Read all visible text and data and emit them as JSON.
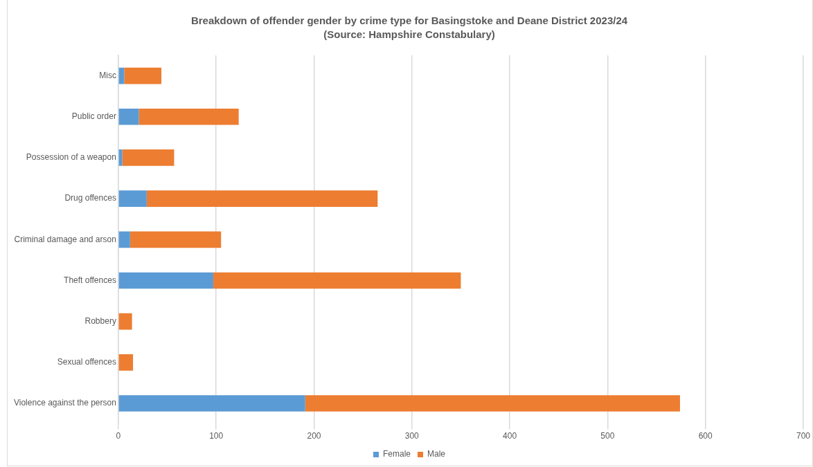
{
  "chart_data": {
    "type": "bar",
    "orientation": "horizontal",
    "stacked": true,
    "title": "Breakdown of offender gender by crime type for Basingstoke and Deane District 2023/24",
    "subtitle": "(Source: Hampshire Constabulary)",
    "categories": [
      "Misc",
      "Public order",
      "Possession of a weapon",
      "Drug offences",
      "Criminal damage and arson",
      "Theft offences",
      "Robbery",
      "Sexual offences",
      "Violence against the person"
    ],
    "series": [
      {
        "name": "Female",
        "color": "#5b9bd5",
        "values": [
          6,
          21,
          4,
          29,
          12,
          97,
          0,
          0,
          191
        ]
      },
      {
        "name": "Male",
        "color": "#ed7d31",
        "values": [
          38,
          102,
          53,
          236,
          93,
          253,
          14,
          15,
          383
        ]
      }
    ],
    "xlim": [
      0,
      700
    ],
    "xticks": [
      0,
      100,
      200,
      300,
      400,
      500,
      600,
      700
    ],
    "grid": "x",
    "legend": "bottom"
  }
}
